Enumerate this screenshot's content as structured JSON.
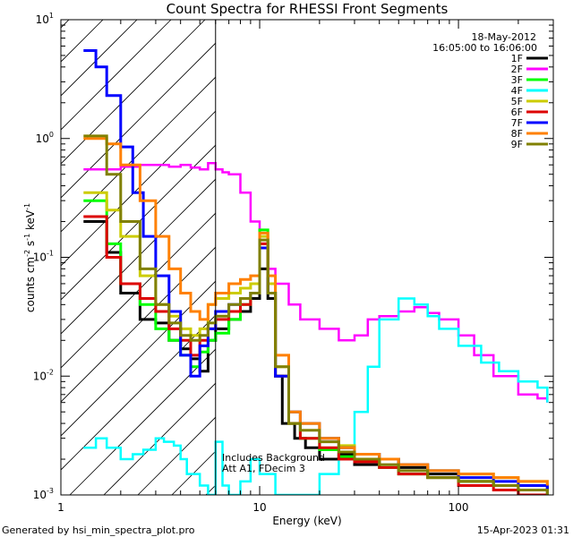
{
  "chart_data": {
    "type": "line",
    "title": "Count Spectra for RHESSI Front Segments",
    "date": "18-May-2012",
    "time_range": "16:05:00 to 16:06:00",
    "xlabel": "Energy (keV)",
    "ylabel": "counts cm^-2 s^-1 keV^-1",
    "ylabel_parts": {
      "base1": "counts cm",
      "sup1": "-2",
      "base2": " s",
      "sup2": "-1",
      "base3": " keV",
      "sup3": "-1"
    },
    "x_scale": "log",
    "y_scale": "log",
    "xlim": [
      1,
      300
    ],
    "ylim": [
      0.001,
      10
    ],
    "x_ticks": [
      {
        "v": 1,
        "label": "1"
      },
      {
        "v": 10,
        "label": "10"
      },
      {
        "v": 100,
        "label": "100"
      }
    ],
    "y_ticks": [
      {
        "v": 0.001,
        "b": "10",
        "e": "-3"
      },
      {
        "v": 0.01,
        "b": "10",
        "e": "-2"
      },
      {
        "v": 0.1,
        "b": "10",
        "e": "-1"
      },
      {
        "v": 1,
        "b": "10",
        "e": "0"
      },
      {
        "v": 10,
        "b": "10",
        "e": "1"
      }
    ],
    "hatched_region_max_keV": 6,
    "annotations": [
      "Includes Background",
      "Att A1, FDecim 3"
    ],
    "series": [
      {
        "name": "1F",
        "color": "#000000",
        "x": [
          1.3,
          1.7,
          2,
          2.5,
          3,
          3.5,
          4,
          4.5,
          5,
          5.5,
          6,
          7,
          8,
          9,
          10,
          11,
          12,
          13,
          15,
          17,
          20,
          25,
          30,
          40,
          50,
          70,
          100,
          150,
          200,
          280
        ],
        "y": [
          0.2,
          0.11,
          0.05,
          0.03,
          0.028,
          0.02,
          0.017,
          0.014,
          0.011,
          0.02,
          0.025,
          0.03,
          0.035,
          0.045,
          0.08,
          0.045,
          0.01,
          0.004,
          0.003,
          0.0025,
          0.002,
          0.0022,
          0.0018,
          0.002,
          0.0017,
          0.0015,
          0.0013,
          0.0012,
          0.001,
          0.0012
        ]
      },
      {
        "name": "2F",
        "color": "#ff00ff",
        "x": [
          1.3,
          1.7,
          2,
          2.5,
          3,
          3.5,
          4,
          4.5,
          5,
          5.5,
          6,
          6.5,
          7,
          8,
          9,
          10,
          11,
          12,
          14,
          16,
          20,
          25,
          30,
          35,
          40,
          50,
          60,
          70,
          80,
          100,
          120,
          150,
          200,
          250,
          280
        ],
        "y": [
          0.55,
          0.55,
          0.58,
          0.6,
          0.6,
          0.58,
          0.6,
          0.57,
          0.55,
          0.62,
          0.55,
          0.52,
          0.5,
          0.35,
          0.2,
          0.12,
          0.08,
          0.06,
          0.04,
          0.03,
          0.025,
          0.02,
          0.022,
          0.03,
          0.032,
          0.035,
          0.038,
          0.034,
          0.03,
          0.022,
          0.015,
          0.01,
          0.007,
          0.0065,
          0.006
        ]
      },
      {
        "name": "3F",
        "color": "#00ff00",
        "x": [
          1.3,
          1.7,
          2,
          2.5,
          3,
          3.5,
          4,
          4.5,
          5,
          5.5,
          6,
          7,
          8,
          9,
          10,
          11,
          12,
          14,
          16,
          20,
          25,
          30,
          40,
          50,
          70,
          100,
          150,
          200,
          280
        ],
        "y": [
          0.3,
          0.13,
          0.06,
          0.04,
          0.025,
          0.02,
          0.015,
          0.012,
          0.016,
          0.02,
          0.023,
          0.03,
          0.04,
          0.05,
          0.17,
          0.05,
          0.01,
          0.004,
          0.003,
          0.0024,
          0.0021,
          0.002,
          0.0017,
          0.0015,
          0.0014,
          0.0013,
          0.0012,
          0.0011,
          0.0011
        ]
      },
      {
        "name": "4F",
        "color": "#00ffff",
        "x": [
          1.3,
          1.5,
          1.7,
          2,
          2.3,
          2.6,
          3,
          3.3,
          3.7,
          4,
          4.3,
          5,
          5.5,
          6,
          6.5,
          7,
          8,
          9,
          10,
          12,
          15,
          20,
          25,
          30,
          35,
          40,
          50,
          60,
          70,
          80,
          100,
          130,
          160,
          200,
          250,
          280
        ],
        "y": [
          0.0025,
          0.003,
          0.0025,
          0.002,
          0.0022,
          0.0024,
          0.003,
          0.0028,
          0.0026,
          0.002,
          0.0015,
          0.0012,
          0.001,
          0.0028,
          0.0012,
          0.001,
          0.0013,
          0.002,
          0.0015,
          0.001,
          0.001,
          0.0015,
          0.0025,
          0.005,
          0.012,
          0.03,
          0.045,
          0.04,
          0.032,
          0.025,
          0.018,
          0.013,
          0.011,
          0.009,
          0.008,
          0.006
        ]
      },
      {
        "name": "5F",
        "color": "#cccc00",
        "x": [
          1.3,
          1.7,
          2,
          2.5,
          3,
          3.5,
          4,
          4.5,
          5,
          5.5,
          6,
          7,
          8,
          9,
          10,
          11,
          12,
          14,
          16,
          20,
          25,
          30,
          40,
          50,
          70,
          100,
          150,
          200,
          280
        ],
        "y": [
          0.35,
          0.25,
          0.15,
          0.07,
          0.04,
          0.032,
          0.025,
          0.022,
          0.025,
          0.04,
          0.045,
          0.05,
          0.055,
          0.06,
          0.15,
          0.06,
          0.012,
          0.005,
          0.004,
          0.003,
          0.0026,
          0.0022,
          0.002,
          0.0018,
          0.0016,
          0.0015,
          0.0014,
          0.0013,
          0.0012
        ]
      },
      {
        "name": "6F",
        "color": "#dd0000",
        "x": [
          1.3,
          1.7,
          2,
          2.5,
          3,
          3.5,
          4,
          4.5,
          5,
          5.5,
          6,
          7,
          8,
          9,
          10,
          11,
          12,
          14,
          16,
          20,
          25,
          30,
          40,
          50,
          70,
          100,
          150,
          200,
          280
        ],
        "y": [
          0.22,
          0.1,
          0.06,
          0.045,
          0.035,
          0.025,
          0.02,
          0.015,
          0.02,
          0.025,
          0.03,
          0.035,
          0.04,
          0.05,
          0.13,
          0.05,
          0.01,
          0.004,
          0.003,
          0.0025,
          0.002,
          0.0019,
          0.0017,
          0.0015,
          0.0014,
          0.0012,
          0.0011,
          0.001,
          0.001
        ]
      },
      {
        "name": "7F",
        "color": "#0000ff",
        "x": [
          1.3,
          1.5,
          1.7,
          2,
          2.3,
          2.6,
          3,
          3.5,
          4,
          4.5,
          5,
          5.5,
          6,
          7,
          8,
          9,
          10,
          11,
          12,
          14,
          16,
          20,
          25,
          30,
          40,
          50,
          70,
          100,
          150,
          200,
          280
        ],
        "y": [
          5.5,
          4,
          2.3,
          0.85,
          0.35,
          0.15,
          0.07,
          0.035,
          0.015,
          0.01,
          0.018,
          0.025,
          0.035,
          0.04,
          0.045,
          0.05,
          0.12,
          0.05,
          0.01,
          0.005,
          0.004,
          0.003,
          0.0025,
          0.0022,
          0.002,
          0.0018,
          0.0016,
          0.0014,
          0.0013,
          0.0012,
          0.0011
        ]
      },
      {
        "name": "8F",
        "color": "#ff8000",
        "x": [
          1.3,
          1.7,
          2,
          2.5,
          3,
          3.5,
          4,
          4.5,
          5,
          5.5,
          6,
          7,
          8,
          9,
          10,
          11,
          12,
          14,
          16,
          20,
          25,
          30,
          40,
          50,
          70,
          100,
          150,
          200,
          280
        ],
        "y": [
          1.0,
          0.9,
          0.6,
          0.3,
          0.15,
          0.08,
          0.05,
          0.035,
          0.03,
          0.04,
          0.05,
          0.06,
          0.065,
          0.07,
          0.16,
          0.07,
          0.015,
          0.005,
          0.004,
          0.003,
          0.0025,
          0.0022,
          0.002,
          0.0018,
          0.0016,
          0.0015,
          0.0014,
          0.0013,
          0.0012
        ]
      },
      {
        "name": "9F",
        "color": "#808000",
        "x": [
          1.3,
          1.7,
          2,
          2.5,
          3,
          3.5,
          4,
          4.5,
          5,
          5.5,
          6,
          7,
          8,
          9,
          10,
          11,
          12,
          14,
          16,
          20,
          25,
          30,
          40,
          50,
          70,
          100,
          150,
          200,
          280
        ],
        "y": [
          1.05,
          0.5,
          0.2,
          0.08,
          0.04,
          0.028,
          0.022,
          0.02,
          0.022,
          0.028,
          0.032,
          0.04,
          0.045,
          0.05,
          0.14,
          0.05,
          0.012,
          0.004,
          0.0035,
          0.0028,
          0.0023,
          0.002,
          0.0018,
          0.0016,
          0.0014,
          0.0013,
          0.0012,
          0.0011,
          0.001
        ]
      }
    ]
  },
  "footer": {
    "left": "Generated by hsi_min_spectra_plot.pro",
    "right": "15-Apr-2023 01:31"
  }
}
